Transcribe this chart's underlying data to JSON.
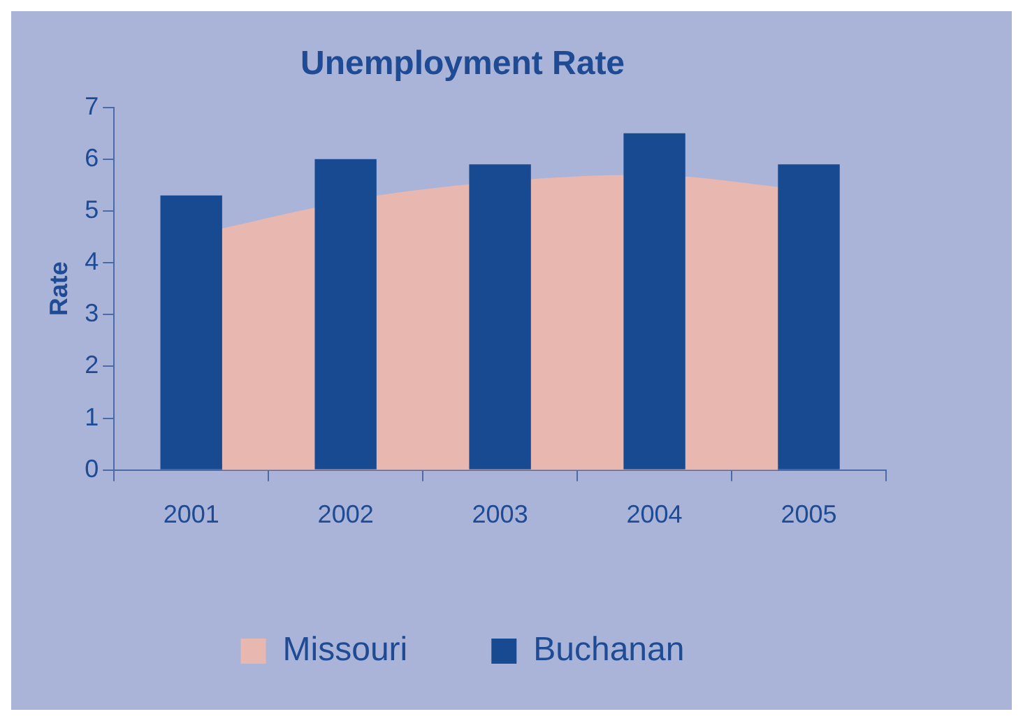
{
  "chart_data": {
    "type": "bar",
    "title": "Unemployment Rate",
    "ylabel": "Rate",
    "x": [
      2001,
      2002,
      2003,
      2004,
      2005
    ],
    "series": [
      {
        "name": "Missouri",
        "type": "area",
        "color": "#e8b8b0",
        "x": [
          2001.2,
          2001.8,
          2002.2,
          2002.8,
          2003.2,
          2003.8,
          2004.2,
          2004.8
        ],
        "values": [
          4.65,
          5.05,
          5.28,
          5.5,
          5.6,
          5.68,
          5.65,
          5.45
        ]
      },
      {
        "name": "Buchanan",
        "color": "#174a90",
        "values": [
          5.3,
          6.0,
          5.9,
          6.5,
          5.9
        ]
      }
    ],
    "xlim": [
      2000.5,
      2005.5
    ],
    "xticks": [
      2001,
      2002,
      2003,
      2004,
      2005
    ],
    "ylim": [
      0,
      7
    ],
    "yticks": [
      0,
      1,
      2,
      3,
      4,
      5,
      6,
      7
    ],
    "grid": false,
    "legend": "bottom"
  }
}
